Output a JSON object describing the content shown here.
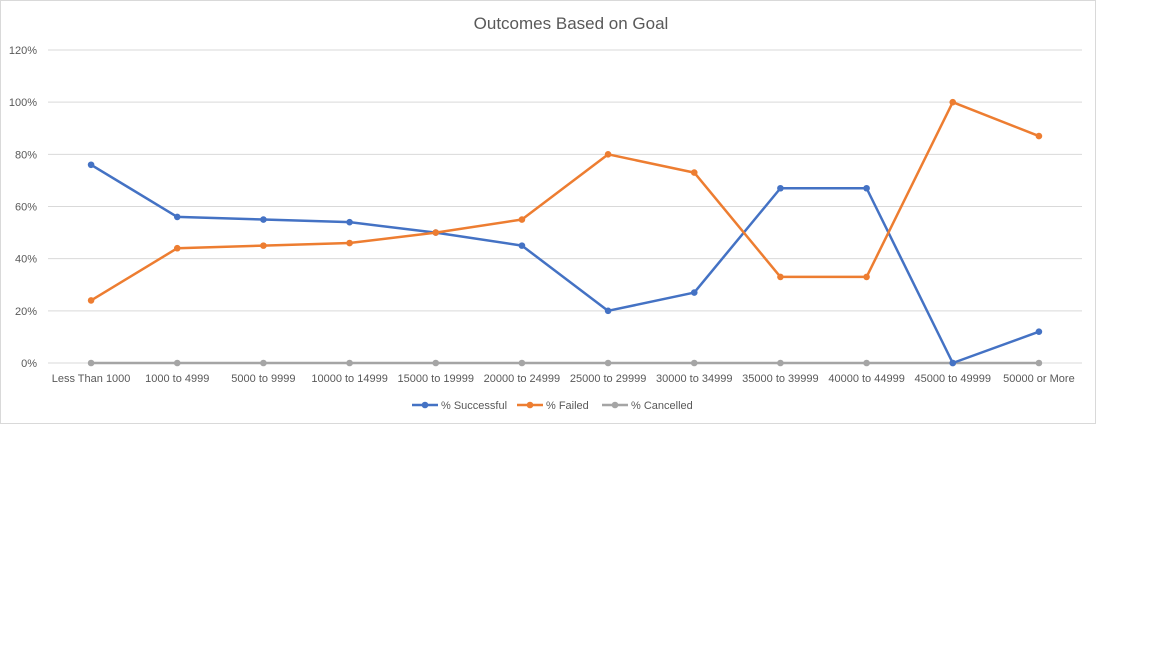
{
  "chart_data": {
    "type": "line",
    "title": "Outcomes Based on Goal",
    "xlabel": "",
    "ylabel": "",
    "ylim": [
      0,
      1.2
    ],
    "y_ticks": [
      0,
      0.2,
      0.4,
      0.6,
      0.8,
      1.0,
      1.2
    ],
    "y_tick_labels": [
      "0%",
      "20%",
      "40%",
      "60%",
      "80%",
      "100%",
      "120%"
    ],
    "grid": true,
    "legend_position": "bottom",
    "categories": [
      "Less Than 1000",
      "1000 to 4999",
      "5000 to 9999",
      "10000 to 14999",
      "15000 to 19999",
      "20000 to 24999",
      "25000 to 29999",
      "30000 to 34999",
      "35000 to 39999",
      "40000 to 44999",
      "45000 to 49999",
      "50000 or More"
    ],
    "series": [
      {
        "name": "% Successful",
        "color": "#4472C4",
        "values": [
          0.76,
          0.56,
          0.55,
          0.54,
          0.5,
          0.45,
          0.2,
          0.27,
          0.67,
          0.67,
          0.0,
          0.12
        ]
      },
      {
        "name": "% Failed",
        "color": "#ED7D31",
        "values": [
          0.24,
          0.44,
          0.45,
          0.46,
          0.5,
          0.55,
          0.8,
          0.73,
          0.33,
          0.33,
          1.0,
          0.87
        ]
      },
      {
        "name": "% Cancelled",
        "color": "#A5A5A5",
        "values": [
          0,
          0,
          0,
          0,
          0,
          0,
          0,
          0,
          0,
          0,
          0,
          0
        ]
      }
    ],
    "gridline_color": "#d9d9d9"
  }
}
